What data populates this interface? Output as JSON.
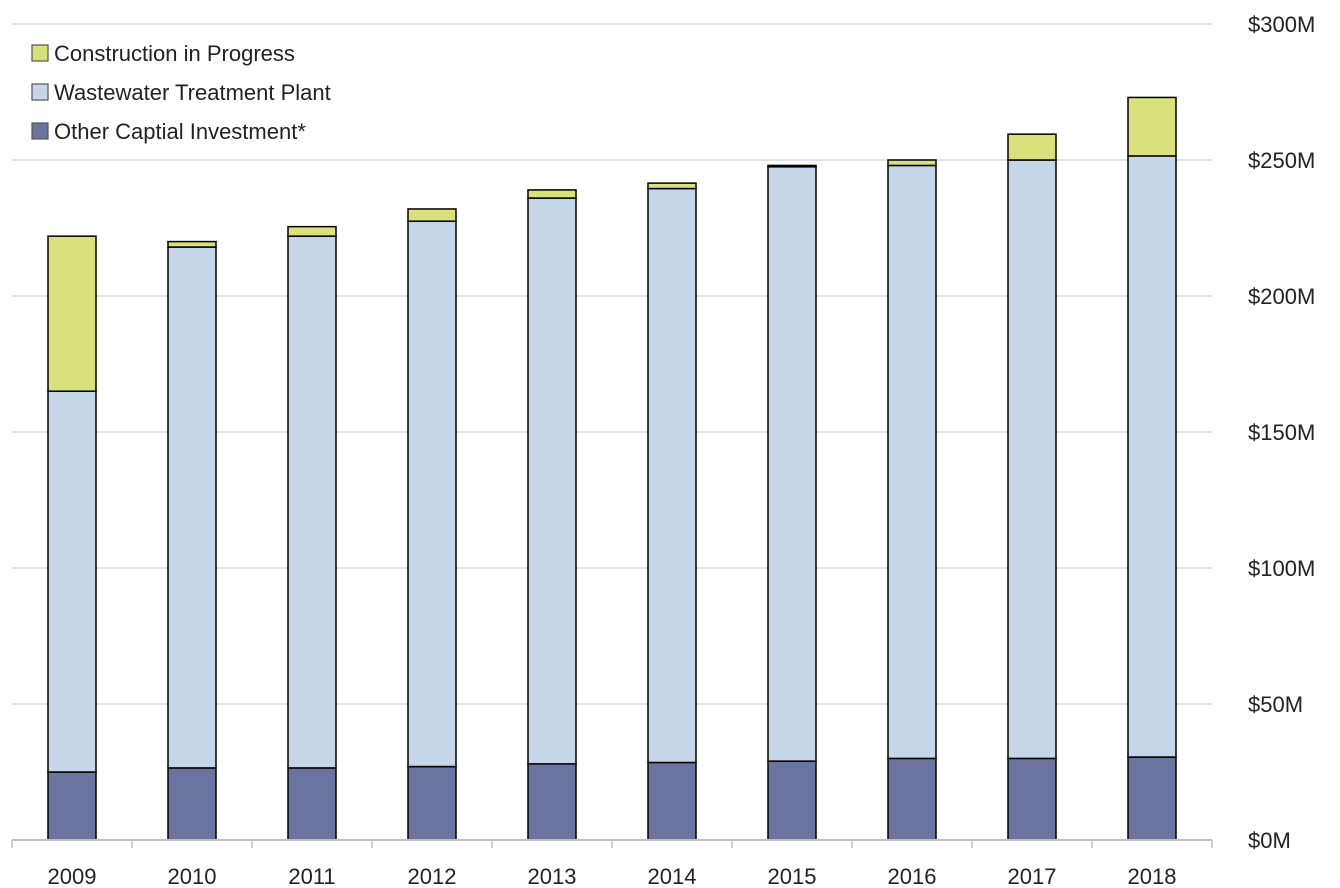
{
  "chart_data": {
    "type": "bar",
    "stacked": true,
    "title": "",
    "xlabel": "",
    "ylabel": "",
    "categories": [
      "2009",
      "2010",
      "2011",
      "2012",
      "2013",
      "2014",
      "2015",
      "2016",
      "2017",
      "2018"
    ],
    "series": [
      {
        "name": "Other Captial Investment*",
        "color": "#6b739f",
        "values": [
          25,
          26.5,
          26.5,
          27,
          28,
          28.5,
          29,
          30,
          30,
          30.5
        ]
      },
      {
        "name": "Wastewater Treatment Plant",
        "color": "#c5d6e9",
        "values": [
          140,
          191.5,
          195.5,
          200.5,
          208,
          211,
          218.5,
          218,
          220,
          221
        ]
      },
      {
        "name": "Construction in Progress",
        "color": "#d8e17c",
        "values": [
          57,
          2,
          3.5,
          4.5,
          3,
          2,
          0.5,
          2,
          9.5,
          21.5
        ]
      }
    ],
    "legend_order": [
      2,
      1,
      0
    ],
    "legend_position": "top-left",
    "y_axis_position": "right",
    "ylim": [
      0,
      300
    ],
    "yticks": [
      0,
      50,
      100,
      150,
      200,
      250,
      300
    ],
    "ytick_labels": [
      "$0M",
      "$50M",
      "$100M",
      "$150M",
      "$200M",
      "$250M",
      "$300M"
    ],
    "grid": true
  }
}
